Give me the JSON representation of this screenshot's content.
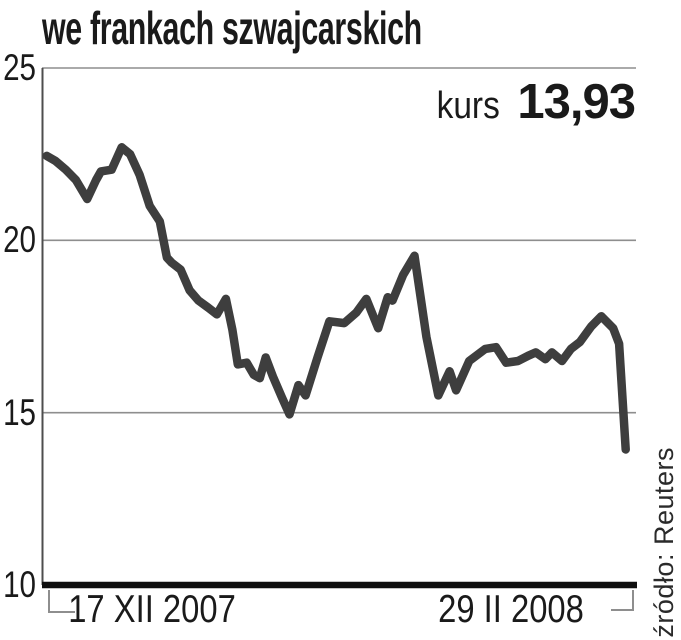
{
  "title": "we frankach szwajcarskich",
  "annotation": {
    "label": "kurs",
    "value": "13,93"
  },
  "source": "źródło: Reuters",
  "colors": {
    "text": "#1a1a1a",
    "line": "#3e3e3e",
    "grid": "#8e8e8e",
    "axis": "#0e0e0e"
  },
  "chart_data": {
    "type": "line",
    "title": "we frankach szwajcarskich",
    "ylim": [
      10,
      25
    ],
    "yticks": [
      25,
      20,
      15,
      10
    ],
    "xtick_labels": [
      "17 XII 2007",
      "29 II 2008"
    ],
    "grid": "horizontal gray lines at 15 and 20, gray top border at 25, thick black baseline at 10",
    "legend_position": "none",
    "annotation_text": "kurs 13,93",
    "last_value": 13.93,
    "source": "źródło: Reuters",
    "series": [
      {
        "name": "kurs we frankach szwajcarskich",
        "points": [
          [
            0.008,
            22.45
          ],
          [
            0.023,
            22.3
          ],
          [
            0.04,
            22.05
          ],
          [
            0.057,
            21.75
          ],
          [
            0.076,
            21.2
          ],
          [
            0.091,
            21.75
          ],
          [
            0.099,
            22.0
          ],
          [
            0.117,
            22.05
          ],
          [
            0.134,
            22.7
          ],
          [
            0.148,
            22.5
          ],
          [
            0.164,
            21.9
          ],
          [
            0.181,
            21.0
          ],
          [
            0.198,
            20.55
          ],
          [
            0.21,
            19.5
          ],
          [
            0.218,
            19.35
          ],
          [
            0.233,
            19.15
          ],
          [
            0.248,
            18.55
          ],
          [
            0.263,
            18.25
          ],
          [
            0.279,
            18.05
          ],
          [
            0.294,
            17.85
          ],
          [
            0.309,
            18.3
          ],
          [
            0.32,
            17.4
          ],
          [
            0.329,
            16.4
          ],
          [
            0.344,
            16.45
          ],
          [
            0.356,
            16.1
          ],
          [
            0.366,
            16.0
          ],
          [
            0.376,
            16.6
          ],
          [
            0.388,
            16.05
          ],
          [
            0.403,
            15.45
          ],
          [
            0.416,
            14.95
          ],
          [
            0.431,
            15.8
          ],
          [
            0.443,
            15.5
          ],
          [
            0.463,
            16.6
          ],
          [
            0.483,
            17.65
          ],
          [
            0.508,
            17.6
          ],
          [
            0.528,
            17.9
          ],
          [
            0.545,
            18.3
          ],
          [
            0.565,
            17.45
          ],
          [
            0.581,
            18.35
          ],
          [
            0.589,
            18.25
          ],
          [
            0.607,
            19.0
          ],
          [
            0.626,
            19.55
          ],
          [
            0.646,
            17.2
          ],
          [
            0.666,
            15.5
          ],
          [
            0.685,
            16.2
          ],
          [
            0.696,
            15.65
          ],
          [
            0.718,
            16.5
          ],
          [
            0.745,
            16.85
          ],
          [
            0.763,
            16.9
          ],
          [
            0.78,
            16.45
          ],
          [
            0.8,
            16.5
          ],
          [
            0.817,
            16.65
          ],
          [
            0.83,
            16.75
          ],
          [
            0.846,
            16.55
          ],
          [
            0.857,
            16.75
          ],
          [
            0.874,
            16.5
          ],
          [
            0.889,
            16.85
          ],
          [
            0.904,
            17.05
          ],
          [
            0.923,
            17.5
          ],
          [
            0.94,
            17.8
          ],
          [
            0.96,
            17.45
          ],
          [
            0.97,
            17.0
          ],
          [
            0.981,
            13.93
          ]
        ]
      }
    ]
  }
}
